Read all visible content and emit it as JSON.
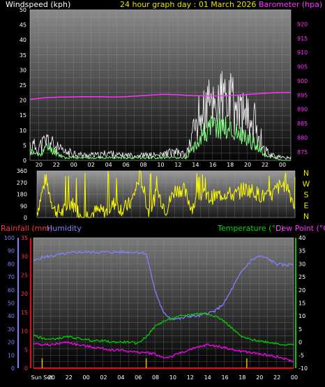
{
  "header_top": {
    "left": "Windspeed (kph)",
    "center": "24 hour graph day : 01 March 2026",
    "right": "Barometer (hpa)"
  },
  "header_bottom": {
    "rainfall": "Rainfall (mm)",
    "humidity": "Humidity",
    "temperature": "Temperature (°C)",
    "dewpoint": "Dew Point (°C)"
  },
  "colors": {
    "wind_avg": "#80ff80",
    "wind_gust": "#ffffff",
    "barometer": "#ff33ff",
    "direction": "#ffff00",
    "humidity": "#8080ff",
    "temperature": "#00cc00",
    "dewpoint": "#ff00ff",
    "rain": "#ff0000",
    "sun_marker": "#e0c000"
  },
  "chart_data": [
    {
      "type": "line",
      "id": "wind",
      "x_ticks": [
        "20",
        "22",
        "00",
        "02",
        "04",
        "06",
        "08",
        "10",
        "12",
        "14",
        "16",
        "18",
        "20",
        "22",
        "00"
      ],
      "ylim_left": [
        0,
        50
      ],
      "yticks_left": [
        "0",
        "5",
        "10",
        "15",
        "20",
        "25",
        "30",
        "35",
        "40",
        "45",
        "50"
      ],
      "ylim_right": [
        872,
        925
      ],
      "yticks_right": [
        "875",
        "880",
        "885",
        "890",
        "895",
        "900",
        "905",
        "910",
        "915",
        "920"
      ],
      "grid": true,
      "hours": [
        18,
        19,
        20,
        21,
        22,
        23,
        24,
        25,
        26,
        27,
        28,
        29,
        30,
        31,
        32,
        33,
        34,
        35,
        36,
        37,
        38,
        39,
        40,
        41,
        42,
        43,
        44,
        45,
        46,
        47,
        48
      ],
      "series": [
        {
          "key": "gust",
          "values": [
            6,
            5,
            8,
            5,
            3,
            3,
            2,
            2,
            2,
            3,
            2,
            2,
            2,
            2,
            2,
            2,
            3,
            3,
            2,
            14,
            19,
            22,
            23,
            22,
            19,
            16,
            14,
            4,
            2,
            1,
            1
          ]
        },
        {
          "key": "avg",
          "values": [
            3,
            2,
            5,
            3,
            1,
            1,
            1,
            1,
            1,
            1,
            1,
            1,
            1,
            1,
            1,
            1,
            1,
            1,
            1,
            6,
            10,
            12,
            13,
            11,
            10,
            8,
            6,
            2,
            1,
            0,
            0
          ]
        },
        {
          "key": "barometer",
          "values": [
            893.5,
            893.8,
            894.1,
            894.2,
            894.3,
            894.3,
            894.4,
            894.4,
            894.4,
            894.3,
            894.3,
            894.4,
            894.6,
            894.8,
            895.0,
            895.2,
            895.2,
            895.1,
            894.9,
            894.8,
            894.7,
            894.7,
            894.7,
            894.8,
            895.0,
            895.2,
            895.4,
            895.6,
            895.8,
            895.9,
            895.9
          ]
        }
      ]
    },
    {
      "type": "line",
      "id": "direction",
      "ylim": [
        0,
        360
      ],
      "yticks": [
        "0",
        "90",
        "180",
        "270",
        "360"
      ],
      "compass_labels": [
        "N",
        "W",
        "S",
        "E",
        "N"
      ],
      "hours": [
        18,
        19,
        20,
        21,
        22,
        23,
        24,
        25,
        26,
        27,
        28,
        29,
        30,
        31,
        32,
        33,
        34,
        35,
        36,
        37,
        38,
        39,
        40,
        41,
        42,
        43,
        44,
        45,
        46,
        47,
        48
      ],
      "series": [
        {
          "key": "direction",
          "values": [
            40,
            300,
            60,
            40,
            120,
            30,
            20,
            50,
            40,
            110,
            60,
            120,
            330,
            40,
            200,
            60,
            210,
            220,
            80,
            180,
            150,
            170,
            190,
            170,
            220,
            210,
            170,
            150,
            230,
            260,
            80
          ]
        }
      ]
    },
    {
      "type": "line",
      "id": "thermo",
      "x_ticks": [
        "Sun Set",
        "20",
        "22",
        "00",
        "02",
        "04",
        "06",
        "08",
        "10",
        "12",
        "14",
        "16",
        "18",
        "20",
        "22",
        "00"
      ],
      "ylim_humidity": [
        0,
        100
      ],
      "yticks_humidity": [
        "0",
        "10",
        "20",
        "30",
        "40",
        "50",
        "60",
        "70",
        "80",
        "90",
        "100"
      ],
      "ylim_rain": [
        0,
        35
      ],
      "yticks_rain": [
        "0",
        "5",
        "10",
        "15",
        "20",
        "25",
        "30",
        "35"
      ],
      "ylim_temp": [
        -10,
        40
      ],
      "yticks_temp": [
        "-10",
        "-5",
        "0",
        "5",
        "10",
        "15",
        "20",
        "25",
        "30",
        "35",
        "40"
      ],
      "grid": true,
      "sun_event_hours": [
        19,
        31,
        42.6
      ],
      "hours": [
        18,
        19,
        20,
        21,
        22,
        23,
        24,
        25,
        26,
        27,
        28,
        29,
        30,
        31,
        32,
        33,
        34,
        35,
        36,
        37,
        38,
        39,
        40,
        41,
        42,
        43,
        44,
        45,
        46,
        47,
        48
      ],
      "series": [
        {
          "key": "humidity",
          "values": [
            82,
            85,
            86,
            87,
            88,
            89,
            89,
            89,
            89,
            89,
            89,
            89,
            89,
            88,
            60,
            42,
            38,
            38,
            40,
            40,
            42,
            44,
            50,
            62,
            74,
            82,
            86,
            84,
            80,
            79,
            80
          ]
        },
        {
          "key": "temperature",
          "values": [
            2.5,
            1.5,
            1.0,
            1.5,
            2.0,
            1.5,
            1.0,
            0.5,
            0.5,
            0,
            0,
            0,
            -0.5,
            2,
            6,
            8,
            9,
            10,
            10.5,
            11,
            11,
            10,
            8,
            5,
            2,
            1,
            0.5,
            0,
            -0.5,
            -1,
            -1
          ]
        },
        {
          "key": "dewpoint",
          "values": [
            -0.5,
            -1,
            -1,
            -0.5,
            0,
            -1,
            -1.5,
            -2,
            -2.5,
            -3,
            -3,
            -3.5,
            -4,
            -4,
            -4.5,
            -6,
            -5.5,
            -4,
            -3,
            -2,
            -1,
            -1.5,
            -2,
            -3,
            -3.5,
            -4,
            -4.5,
            -5,
            -5.5,
            -6.5,
            -7.5
          ]
        },
        {
          "key": "rain",
          "values": [
            0,
            0,
            0,
            0,
            0,
            0,
            0,
            0,
            0,
            0,
            0,
            0,
            0,
            0,
            0,
            0,
            0,
            0,
            0,
            0,
            0,
            0,
            0,
            0,
            0,
            0,
            0,
            0,
            0,
            0,
            0
          ]
        }
      ]
    }
  ]
}
